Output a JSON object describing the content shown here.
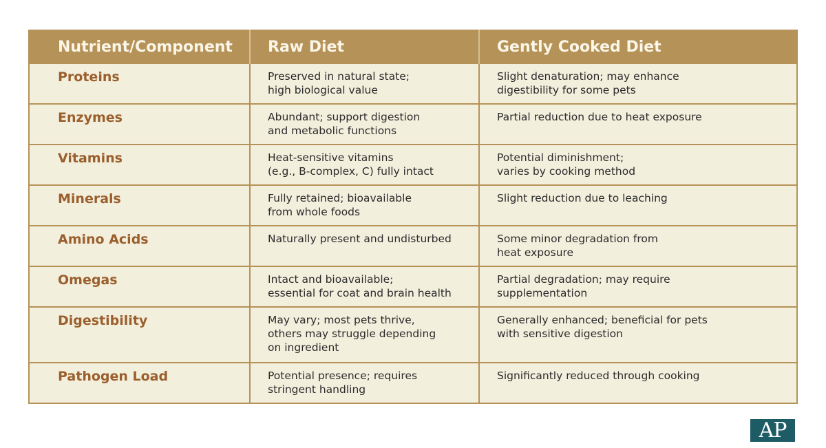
{
  "headers": [
    "Nutrient/Component",
    "Raw Diet",
    "Gently Cooked Diet"
  ],
  "rows": [
    {
      "name": "Proteins",
      "raw": "Preserved in natural state;\nhigh biological value",
      "cooked": "Slight denaturation; may enhance\ndigestibility for some pets"
    },
    {
      "name": "Enzymes",
      "raw": "Abundant; support digestion\nand metabolic functions",
      "cooked": "Partial reduction due to heat exposure"
    },
    {
      "name": "Vitamins",
      "raw": "Heat-sensitive vitamins\n(e.g., B-complex, C) fully intact",
      "cooked": "Potential diminishment;\nvaries by cooking method"
    },
    {
      "name": "Minerals",
      "raw": "Fully retained; bioavailable\nfrom whole foods",
      "cooked": "Slight reduction due to leaching"
    },
    {
      "name": "Amino Acids",
      "raw": "Naturally present and undisturbed",
      "cooked": "Some minor degradation from\nheat exposure"
    },
    {
      "name": "Omegas",
      "raw": "Intact and bioavailable;\nessential for coat and brain health",
      "cooked": "Partial degradation; may require\nsupplementation"
    },
    {
      "name": "Digestibility",
      "raw": "May vary; most pets thrive,\nothers may struggle depending\non ingredient",
      "cooked": "Generally enhanced; beneficial for pets\nwith sensitive digestion"
    },
    {
      "name": "Pathogen Load",
      "raw": "Potential presence; requires\nstringent handling",
      "cooked": "Significantly reduced through cooking"
    }
  ],
  "logo_text": "AP",
  "colors": {
    "header_bg": "#b59258",
    "header_text": "#fbf6e8",
    "body_bg": "#f3efdd",
    "name_text": "#9a5f2d",
    "logo_bg": "#1d5b65"
  }
}
